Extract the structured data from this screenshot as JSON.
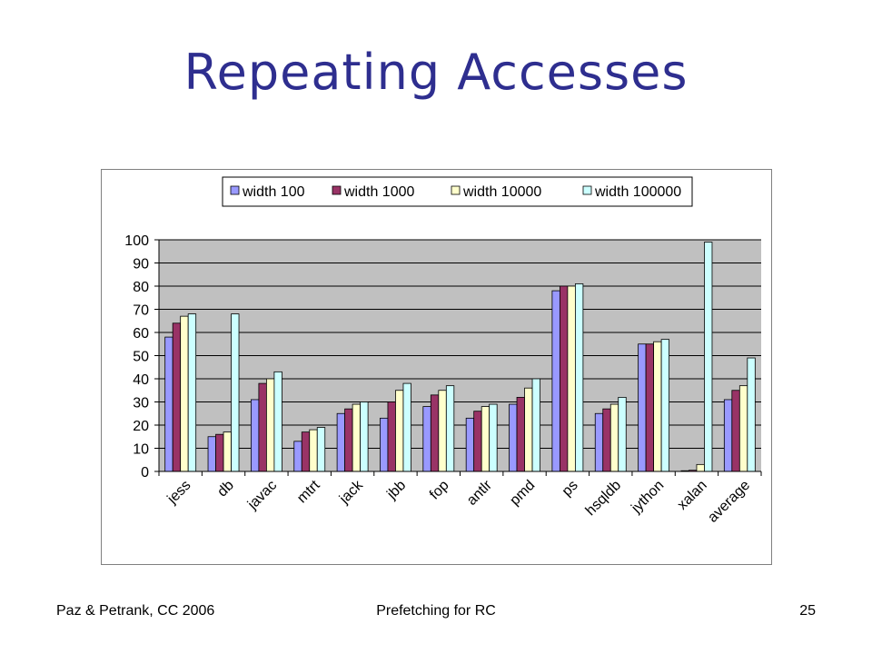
{
  "slide": {
    "title": "Repeating Accesses",
    "footer_left": "Paz & Petrank, CC 2006",
    "footer_center": "Prefetching for RC",
    "page_number": "25"
  },
  "chart_data": {
    "type": "bar",
    "categories": [
      "jess",
      "db",
      "javac",
      "mtrt",
      "jack",
      "jbb",
      "fop",
      "antlr",
      "pmd",
      "ps",
      "hsqldb",
      "jython",
      "xalan",
      "average"
    ],
    "series": [
      {
        "name": "width 100",
        "color": "#9999ff",
        "values": [
          58,
          15,
          31,
          13,
          25,
          23,
          28,
          23,
          29,
          78,
          25,
          55,
          0.3,
          31
        ]
      },
      {
        "name": "width 1000",
        "color": "#993366",
        "values": [
          64,
          16,
          38,
          17,
          27,
          30,
          33,
          26,
          32,
          80,
          27,
          55,
          0.5,
          35
        ]
      },
      {
        "name": "width 10000",
        "color": "#ffffcc",
        "values": [
          67,
          17,
          40,
          18,
          29,
          35,
          35,
          28,
          36,
          80,
          29,
          56,
          3,
          37
        ]
      },
      {
        "name": "width 100000",
        "color": "#ccffff",
        "values": [
          68,
          68,
          43,
          19,
          30,
          38,
          37,
          29,
          40,
          81,
          32,
          57,
          99,
          49
        ]
      }
    ],
    "ylim": [
      0,
      100
    ],
    "yticks": [
      "0",
      "10",
      "20",
      "30",
      "40",
      "50",
      "60",
      "70",
      "80",
      "90",
      "100"
    ],
    "grid": true,
    "plot_background": "#c0c0c0",
    "legend_position": "top"
  }
}
